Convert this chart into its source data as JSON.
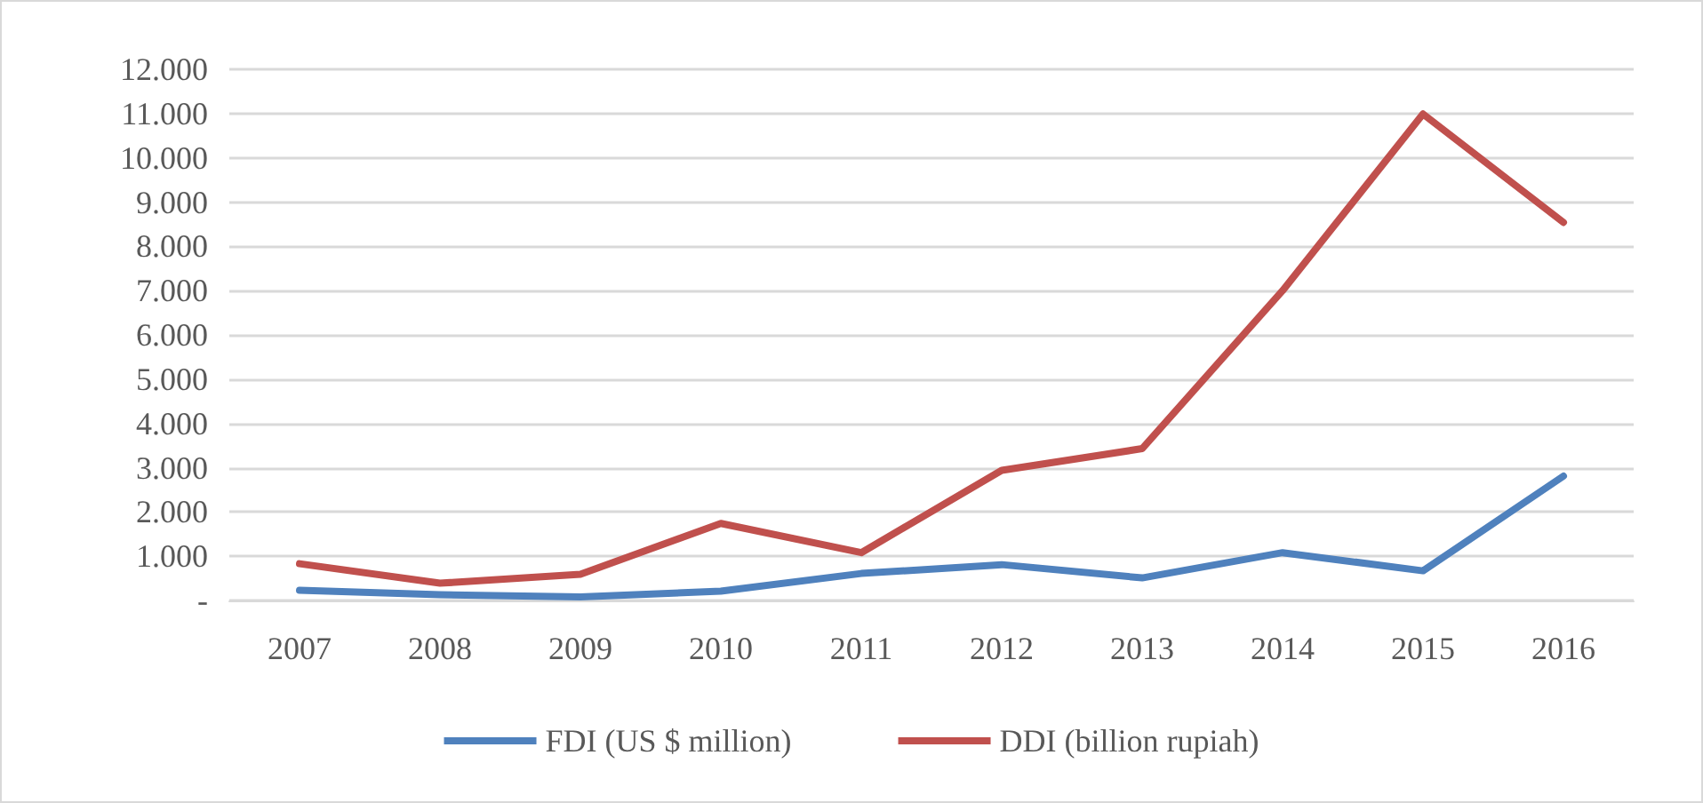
{
  "chart_data": {
    "type": "line",
    "categories": [
      "2007",
      "2008",
      "2009",
      "2010",
      "2011",
      "2012",
      "2013",
      "2014",
      "2015",
      "2016"
    ],
    "series": [
      {
        "name": "FDI (US $ million)",
        "color": "#4f81bd",
        "values": [
          230,
          130,
          80,
          210,
          610,
          810,
          510,
          1080,
          670,
          2810
        ]
      },
      {
        "name": "DDI (billion rupiah)",
        "color": "#c0504d",
        "values": [
          830,
          390,
          590,
          1740,
          1080,
          2940,
          3430,
          7000,
          10990,
          8540
        ]
      }
    ],
    "ylim": [
      0,
      12000
    ],
    "yticks": [
      {
        "value": 0,
        "label": "-"
      },
      {
        "value": 1000,
        "label": "1.000"
      },
      {
        "value": 2000,
        "label": "2.000"
      },
      {
        "value": 3000,
        "label": "3.000"
      },
      {
        "value": 4000,
        "label": "4.000"
      },
      {
        "value": 5000,
        "label": "5.000"
      },
      {
        "value": 6000,
        "label": "6.000"
      },
      {
        "value": 7000,
        "label": "7.000"
      },
      {
        "value": 8000,
        "label": "8.000"
      },
      {
        "value": 9000,
        "label": "9.000"
      },
      {
        "value": 10000,
        "label": "10.000"
      },
      {
        "value": 11000,
        "label": "11.000"
      },
      {
        "value": 12000,
        "label": "12.000"
      }
    ],
    "grid": "y",
    "legend": "bottom",
    "marker": "none",
    "line_style": "solid"
  }
}
